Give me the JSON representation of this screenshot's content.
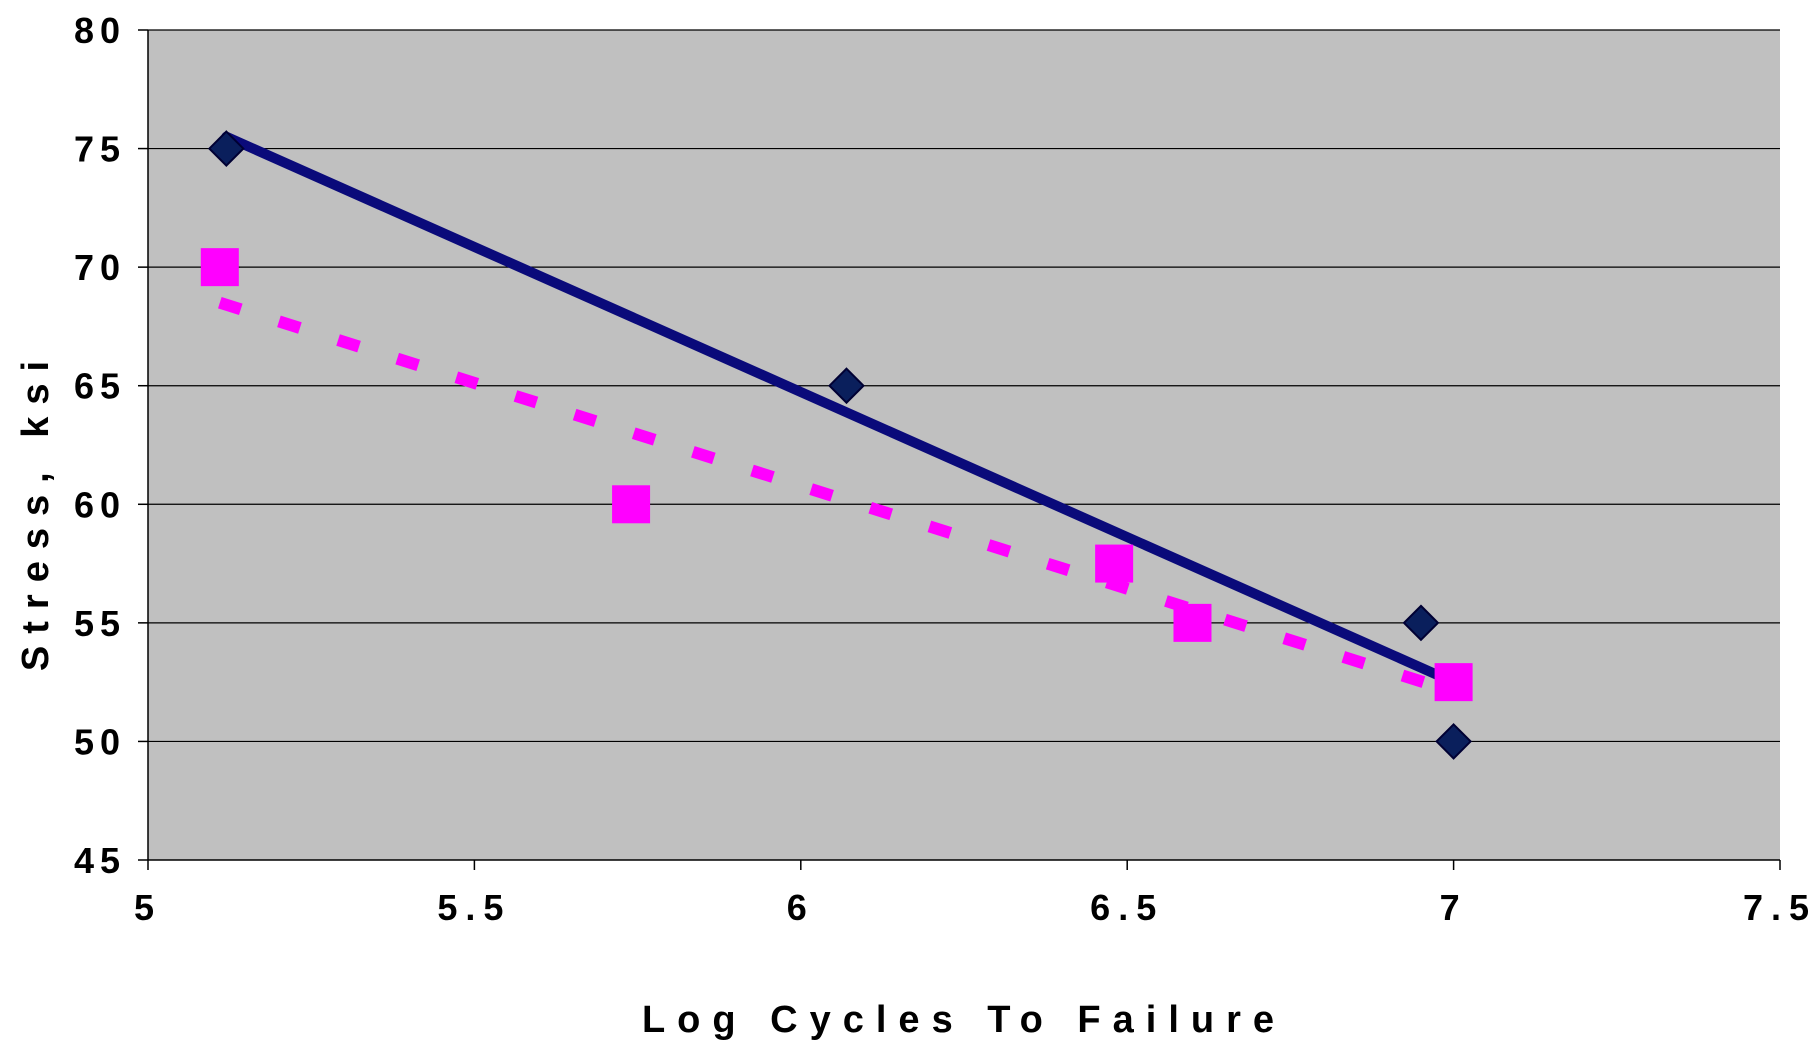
{
  "chart_data": {
    "type": "scatter",
    "title": "",
    "xlabel": "Log Cycles To Failure",
    "ylabel": "Stress, ksi",
    "xlim": [
      5,
      7.5
    ],
    "ylim": [
      45,
      80
    ],
    "x_ticks": [
      5,
      5.5,
      6,
      6.5,
      7,
      7.5
    ],
    "x_tick_labels": [
      "5",
      "5.5",
      "6",
      "6.5",
      "7",
      "7.5"
    ],
    "y_ticks": [
      45,
      50,
      55,
      60,
      65,
      70,
      75,
      80
    ],
    "y_tick_labels": [
      "45",
      "50",
      "55",
      "60",
      "65",
      "70",
      "75",
      "80"
    ],
    "grid": "horizontal",
    "legend": "none",
    "plot_background": "#c0c0c0",
    "series": [
      {
        "marker": "diamond",
        "color": "#0a1f5c",
        "points": [
          {
            "x": 5.12,
            "y": 75
          },
          {
            "x": 6.07,
            "y": 65
          },
          {
            "x": 6.95,
            "y": 55
          },
          {
            "x": 7.0,
            "y": 50
          }
        ],
        "trendline": {
          "style": "solid",
          "color": "#0a0a7a",
          "from": {
            "x": 5.12,
            "y": 75.5
          },
          "to": {
            "x": 7.0,
            "y": 52.5
          }
        }
      },
      {
        "marker": "square",
        "color": "#ff00ff",
        "points": [
          {
            "x": 5.11,
            "y": 70
          },
          {
            "x": 5.74,
            "y": 60
          },
          {
            "x": 6.48,
            "y": 57.5
          },
          {
            "x": 6.6,
            "y": 55
          },
          {
            "x": 7.0,
            "y": 52.5
          }
        ],
        "trendline": {
          "style": "dashed",
          "color": "#ff00ff",
          "from": {
            "x": 5.11,
            "y": 68.5
          },
          "to": {
            "x": 7.0,
            "y": 52.1
          }
        }
      }
    ]
  }
}
